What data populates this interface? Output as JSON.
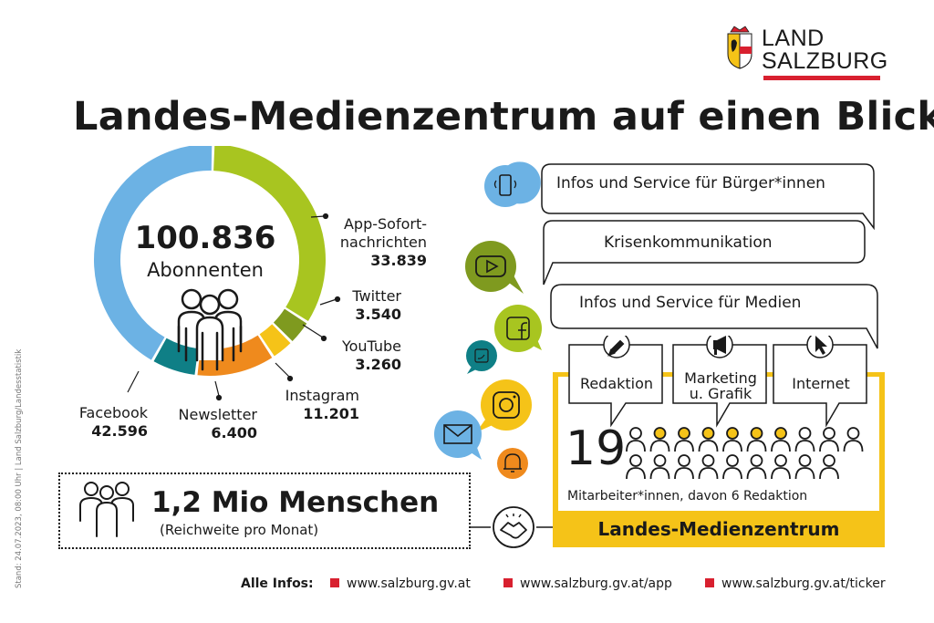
{
  "logo": {
    "line1": "LAND",
    "line2": "SALZBURG"
  },
  "title": "Landes-Medienzentrum auf einen Blick",
  "chart_data": {
    "type": "pie",
    "total": "100.836",
    "total_label": "Abonnenten",
    "categories": [
      "App-Sofort-\nnachrichten",
      "Twitter",
      "YouTube",
      "Instagram",
      "Newsletter",
      "Facebook"
    ],
    "values": [
      33839,
      3540,
      3260,
      11201,
      6400,
      42596
    ],
    "value_labels": [
      "33.839",
      "3.540",
      "3.260",
      "11.201",
      "6.400",
      "42.596"
    ],
    "colors": [
      "#a8c520",
      "#7f9a1f",
      "#f5c318",
      "#ef8a1d",
      "#0f7f86",
      "#6cb2e4"
    ]
  },
  "labels": {
    "app": {
      "name_line1": "App-Sofort-",
      "name_line2": "nachrichten"
    },
    "twitter": {
      "name": "Twitter"
    },
    "youtube": {
      "name": "YouTube"
    },
    "instagram": {
      "name": "Instagram"
    },
    "newsletter": {
      "name": "Newsletter"
    },
    "facebook": {
      "name": "Facebook"
    }
  },
  "reach": {
    "headline": "1,2 Mio Menschen",
    "sub": "(Reichweite pro Monat)"
  },
  "bubbles": [
    "Infos und Service für Bürger*innen",
    "Krisenkommunikation",
    "Infos und Service für Medien"
  ],
  "departments": {
    "redaktion": "Redaktion",
    "marketing_l1": "Marketing",
    "marketing_l2": "u. Grafik",
    "internet": "Internet"
  },
  "staff": {
    "count": "19",
    "caption": "Mitarbeiter*innen, davon 6 Redaktion",
    "highlighted": 6,
    "total": 19
  },
  "center_name": "Landes-Medienzentrum",
  "footer": {
    "label": "Alle Infos:",
    "links": [
      "www.salzburg.gv.at",
      "www.salzburg.gv.at/app",
      "www.salzburg.gv.at/ticker"
    ]
  },
  "side_note": "Stand: 24.07.2023, 08:00 Uhr | Land Salzburg/Landesstatistik",
  "icon_colors": {
    "phone": "#6cb2e4",
    "youtube": "#7f9a1f",
    "facebook": "#a8c520",
    "twitter": "#0f7f86",
    "instagram": "#f5c318",
    "mail": "#6cb2e4",
    "bell": "#ef8a1d",
    "accent": "#f5c318",
    "brand_red": "#d8202f"
  }
}
